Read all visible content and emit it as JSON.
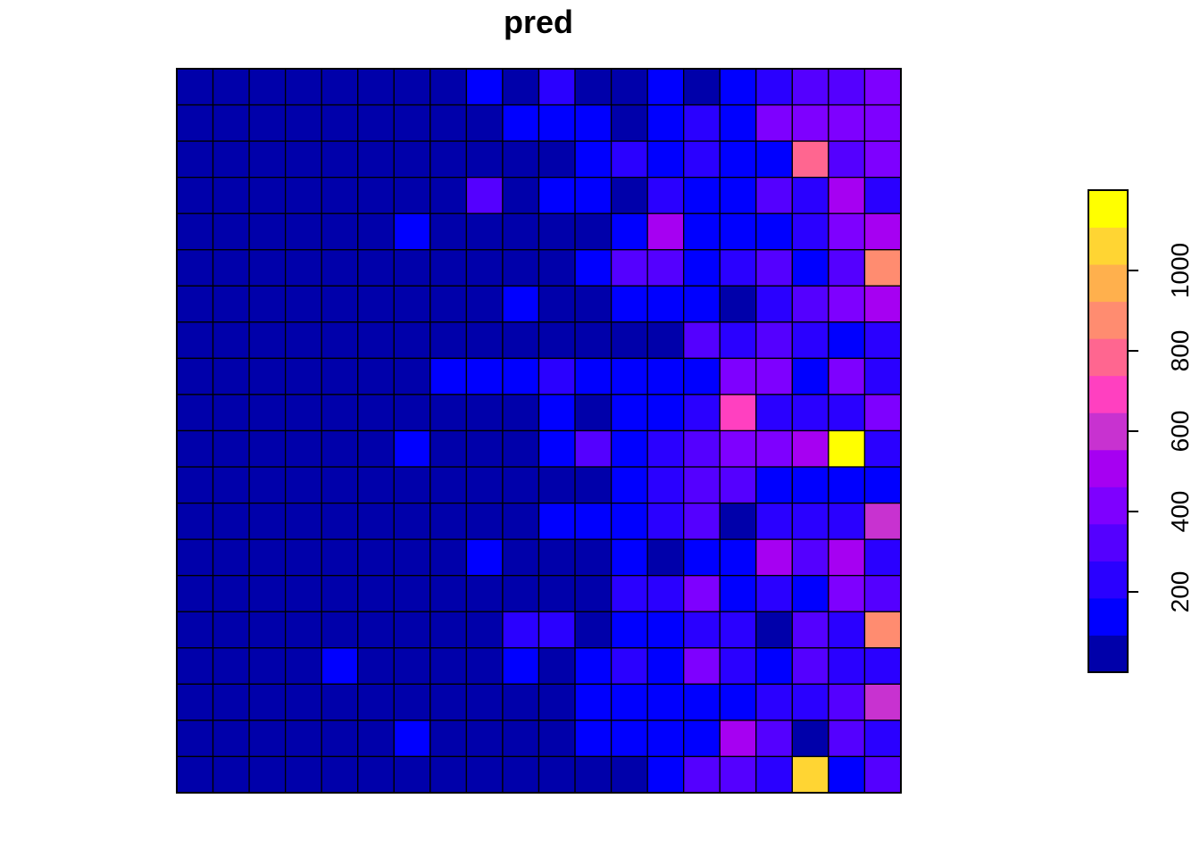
{
  "chart_data": {
    "type": "heatmap",
    "title": "pred",
    "xlabel": "",
    "ylabel": "",
    "grid": true,
    "rows": 20,
    "cols": 20,
    "legend": {
      "placement": "right",
      "orientation": "vertical",
      "range": [
        0,
        1200
      ],
      "ticks": [
        200,
        400,
        600,
        800,
        1000
      ],
      "tick_labels": [
        "200",
        "400",
        "600",
        "800",
        "1000"
      ],
      "colors": [
        "#0000AA",
        "#0000FF",
        "#2A00FF",
        "#5400FF",
        "#7E00FF",
        "#A600F2",
        "#C832D0",
        "#FF40C0",
        "#FF6690",
        "#FF8C70",
        "#FFB04D",
        "#FFD533",
        "#FFFF00"
      ]
    },
    "values": [
      [
        10,
        10,
        10,
        10,
        10,
        10,
        10,
        10,
        120,
        10,
        220,
        10,
        10,
        120,
        10,
        120,
        220,
        360,
        360,
        440
      ],
      [
        10,
        10,
        10,
        10,
        10,
        10,
        10,
        10,
        10,
        120,
        120,
        120,
        10,
        120,
        220,
        120,
        440,
        440,
        440,
        440
      ],
      [
        10,
        10,
        10,
        10,
        10,
        10,
        10,
        10,
        10,
        10,
        10,
        120,
        220,
        120,
        220,
        120,
        120,
        760,
        360,
        440
      ],
      [
        10,
        10,
        10,
        10,
        10,
        10,
        10,
        10,
        360,
        10,
        120,
        120,
        10,
        220,
        120,
        120,
        360,
        220,
        540,
        220
      ],
      [
        10,
        10,
        10,
        10,
        10,
        10,
        120,
        10,
        10,
        10,
        10,
        10,
        120,
        540,
        120,
        120,
        120,
        220,
        440,
        540
      ],
      [
        10,
        10,
        10,
        10,
        10,
        10,
        10,
        10,
        10,
        10,
        10,
        120,
        360,
        360,
        120,
        220,
        360,
        120,
        360,
        840
      ],
      [
        10,
        10,
        10,
        10,
        10,
        10,
        10,
        10,
        10,
        120,
        10,
        10,
        120,
        120,
        120,
        10,
        220,
        360,
        440,
        540
      ],
      [
        10,
        10,
        10,
        10,
        10,
        10,
        10,
        10,
        10,
        10,
        10,
        10,
        10,
        10,
        360,
        220,
        360,
        220,
        120,
        220
      ],
      [
        10,
        10,
        10,
        10,
        10,
        10,
        10,
        120,
        120,
        120,
        220,
        120,
        120,
        120,
        120,
        440,
        440,
        120,
        440,
        220
      ],
      [
        10,
        10,
        10,
        10,
        10,
        10,
        10,
        10,
        10,
        10,
        120,
        10,
        120,
        120,
        220,
        700,
        220,
        220,
        220,
        440
      ],
      [
        10,
        10,
        10,
        10,
        10,
        10,
        120,
        10,
        10,
        10,
        120,
        360,
        120,
        220,
        360,
        440,
        440,
        540,
        1180,
        220
      ],
      [
        10,
        10,
        10,
        10,
        10,
        10,
        10,
        10,
        10,
        10,
        10,
        10,
        120,
        220,
        360,
        360,
        120,
        120,
        120,
        120
      ],
      [
        10,
        10,
        10,
        10,
        10,
        10,
        10,
        10,
        10,
        10,
        120,
        120,
        120,
        220,
        360,
        10,
        220,
        220,
        220,
        640
      ],
      [
        10,
        10,
        10,
        10,
        10,
        10,
        10,
        10,
        120,
        10,
        10,
        10,
        120,
        10,
        120,
        120,
        540,
        360,
        540,
        220
      ],
      [
        10,
        10,
        10,
        10,
        10,
        10,
        10,
        10,
        10,
        10,
        10,
        10,
        220,
        220,
        440,
        120,
        220,
        120,
        440,
        360
      ],
      [
        10,
        10,
        10,
        10,
        10,
        10,
        10,
        10,
        10,
        220,
        220,
        10,
        120,
        120,
        220,
        220,
        10,
        360,
        220,
        840
      ],
      [
        10,
        10,
        10,
        10,
        120,
        10,
        10,
        10,
        10,
        120,
        10,
        120,
        220,
        120,
        440,
        220,
        120,
        360,
        220,
        220
      ],
      [
        10,
        10,
        10,
        10,
        10,
        10,
        10,
        10,
        10,
        10,
        10,
        120,
        120,
        120,
        120,
        120,
        220,
        220,
        360,
        640
      ],
      [
        10,
        10,
        10,
        10,
        10,
        10,
        120,
        10,
        10,
        10,
        10,
        120,
        120,
        120,
        120,
        540,
        360,
        10,
        360,
        220
      ],
      [
        10,
        10,
        10,
        10,
        10,
        10,
        10,
        10,
        10,
        10,
        10,
        10,
        10,
        120,
        360,
        360,
        220,
        1080,
        120,
        360
      ]
    ]
  }
}
